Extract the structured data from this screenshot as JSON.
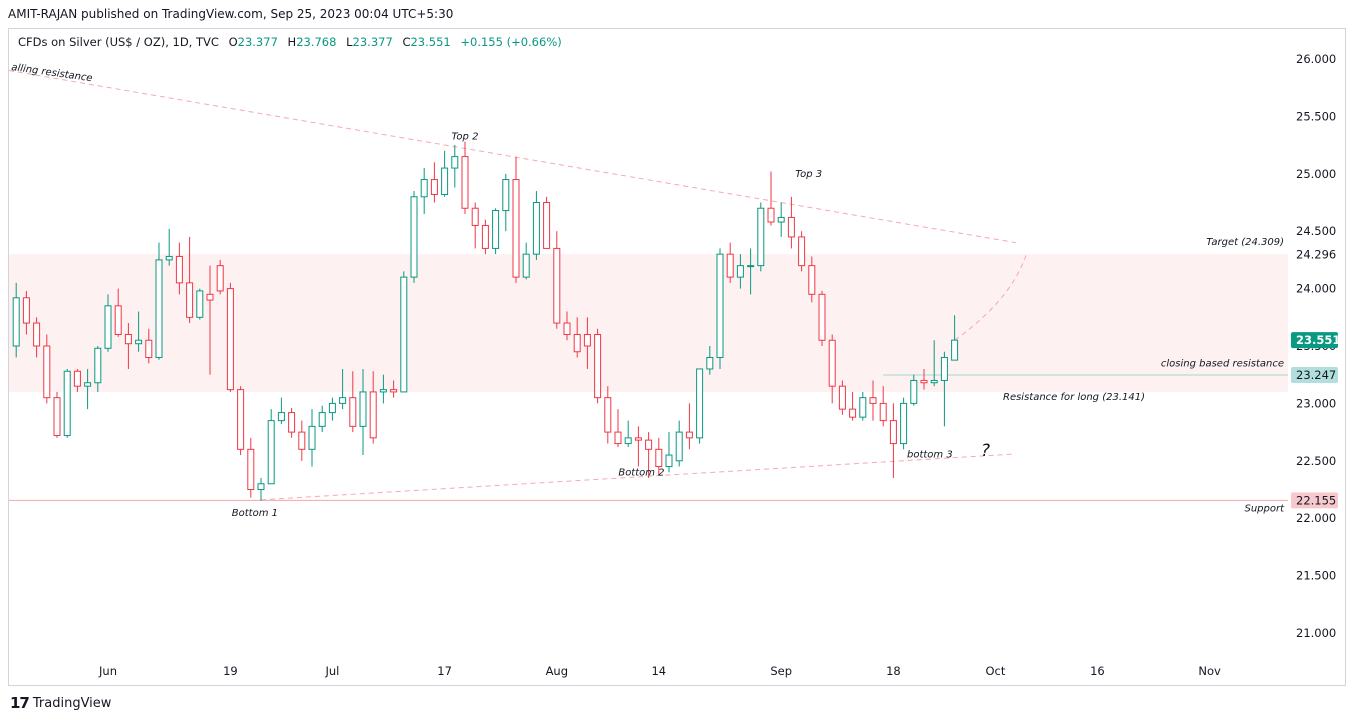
{
  "header": {
    "publisher_line": "AMIT-RAJAN published on TradingView.com, Sep 25, 2023 00:04 UTC+5:30"
  },
  "legend": {
    "symbol": "CFDs on Silver (US$ / OZ), 1D, TVC",
    "open_label": "O",
    "open": "23.377",
    "high_label": "H",
    "high": "23.768",
    "low_label": "L",
    "low": "23.377",
    "close_label": "C",
    "close": "23.551",
    "change": "+0.155 (+0.66%)"
  },
  "footer": {
    "brand": "TradingView",
    "logo_glyph": "17"
  },
  "chart_data": {
    "type": "candlestick",
    "title": "CFDs on Silver (US$ / OZ), 1D, TVC",
    "y_axis": {
      "min": 20.9,
      "max": 26.2,
      "ticks": [
        "26.000",
        "25.500",
        "25.000",
        "24.500",
        "24.000",
        "23.500",
        "23.000",
        "22.500",
        "22.000",
        "21.500",
        "21.000"
      ]
    },
    "x_axis": {
      "ticks": [
        {
          "label": "Jun",
          "day": 0
        },
        {
          "label": "19",
          "day": 12
        },
        {
          "label": "Jul",
          "day": 22
        },
        {
          "label": "17",
          "day": 33
        },
        {
          "label": "Aug",
          "day": 44
        },
        {
          "label": "14",
          "day": 54
        },
        {
          "label": "Sep",
          "day": 66
        },
        {
          "label": "18",
          "day": 77
        },
        {
          "label": "Oct",
          "day": 87
        },
        {
          "label": "16",
          "day": 97
        },
        {
          "label": "Nov",
          "day": 108
        }
      ]
    },
    "price_labels": [
      {
        "text": "24.296",
        "value": 24.296,
        "style": "plain"
      },
      {
        "text": "23.551",
        "value": 23.551,
        "style": "last",
        "color": "#089981"
      },
      {
        "text": "23.247",
        "value": 23.247,
        "style": "level",
        "color": "#b2dfdb"
      },
      {
        "text": "22.155",
        "value": 22.155,
        "style": "support",
        "color": "#f7c9cd"
      }
    ],
    "zone": {
      "from": 23.1,
      "to": 24.3
    },
    "annotations": [
      {
        "text": "alling resistance",
        "kind": "trendline-label"
      },
      {
        "text": "Top 2",
        "value": 25.3
      },
      {
        "text": "Top 3",
        "value": 24.97
      },
      {
        "text": "Target (24.309)",
        "value": 24.38
      },
      {
        "text": "closing based resistance",
        "value": 23.32
      },
      {
        "text": "Resistance for long (23.141)",
        "value": 23.03
      },
      {
        "text": "bottom 3",
        "value": 22.53
      },
      {
        "text": "?",
        "value": 22.54
      },
      {
        "text": "Bottom 1",
        "value": 22.02
      },
      {
        "text": "Bottom 2",
        "value": 22.37
      },
      {
        "text": "Support",
        "value": 22.06
      }
    ],
    "candles": [
      {
        "day": -9,
        "o": 23.5,
        "h": 24.05,
        "l": 23.4,
        "c": 23.92
      },
      {
        "day": -8,
        "o": 23.92,
        "h": 23.98,
        "l": 23.6,
        "c": 23.7
      },
      {
        "day": -7,
        "o": 23.7,
        "h": 23.75,
        "l": 23.4,
        "c": 23.5
      },
      {
        "day": -6,
        "o": 23.5,
        "h": 23.6,
        "l": 23.0,
        "c": 23.05
      },
      {
        "day": -5,
        "o": 23.05,
        "h": 23.1,
        "l": 22.7,
        "c": 22.72
      },
      {
        "day": -4,
        "o": 22.72,
        "h": 23.3,
        "l": 22.7,
        "c": 23.28
      },
      {
        "day": -3,
        "o": 23.28,
        "h": 23.3,
        "l": 23.1,
        "c": 23.15
      },
      {
        "day": -2,
        "o": 23.15,
        "h": 23.3,
        "l": 22.95,
        "c": 23.18
      },
      {
        "day": -1,
        "o": 23.18,
        "h": 23.5,
        "l": 23.1,
        "c": 23.48
      },
      {
        "day": 0,
        "o": 23.48,
        "h": 23.95,
        "l": 23.45,
        "c": 23.85
      },
      {
        "day": 1,
        "o": 23.85,
        "h": 24.0,
        "l": 23.58,
        "c": 23.6
      },
      {
        "day": 2,
        "o": 23.6,
        "h": 23.7,
        "l": 23.3,
        "c": 23.52
      },
      {
        "day": 3,
        "o": 23.52,
        "h": 23.8,
        "l": 23.45,
        "c": 23.55
      },
      {
        "day": 4,
        "o": 23.55,
        "h": 23.65,
        "l": 23.35,
        "c": 23.4
      },
      {
        "day": 5,
        "o": 23.4,
        "h": 24.4,
        "l": 23.38,
        "c": 24.25
      },
      {
        "day": 6,
        "o": 24.25,
        "h": 24.52,
        "l": 24.2,
        "c": 24.28
      },
      {
        "day": 7,
        "o": 24.28,
        "h": 24.4,
        "l": 23.95,
        "c": 24.05
      },
      {
        "day": 8,
        "o": 24.05,
        "h": 24.45,
        "l": 23.7,
        "c": 23.75
      },
      {
        "day": 9,
        "o": 23.75,
        "h": 24.0,
        "l": 23.73,
        "c": 23.98
      },
      {
        "day": 10,
        "o": 23.95,
        "h": 24.2,
        "l": 23.25,
        "c": 23.9
      },
      {
        "day": 11,
        "o": 24.2,
        "h": 24.25,
        "l": 23.95,
        "c": 23.98
      },
      {
        "day": 12,
        "o": 24.0,
        "h": 24.05,
        "l": 23.1,
        "c": 23.12
      },
      {
        "day": 13,
        "o": 23.12,
        "h": 23.15,
        "l": 22.55,
        "c": 22.6
      },
      {
        "day": 14,
        "o": 22.6,
        "h": 22.7,
        "l": 22.18,
        "c": 22.25
      },
      {
        "day": 15,
        "o": 22.25,
        "h": 22.35,
        "l": 22.15,
        "c": 22.3
      },
      {
        "day": 16,
        "o": 22.3,
        "h": 22.95,
        "l": 22.3,
        "c": 22.85
      },
      {
        "day": 17,
        "o": 22.85,
        "h": 23.05,
        "l": 22.82,
        "c": 22.92
      },
      {
        "day": 18,
        "o": 22.92,
        "h": 22.96,
        "l": 22.7,
        "c": 22.75
      },
      {
        "day": 19,
        "o": 22.75,
        "h": 22.85,
        "l": 22.5,
        "c": 22.6
      },
      {
        "day": 20,
        "o": 22.6,
        "h": 22.95,
        "l": 22.45,
        "c": 22.8
      },
      {
        "day": 21,
        "o": 22.8,
        "h": 22.98,
        "l": 22.75,
        "c": 22.92
      },
      {
        "day": 22,
        "o": 22.92,
        "h": 23.05,
        "l": 22.85,
        "c": 23.0
      },
      {
        "day": 23,
        "o": 23.0,
        "h": 23.3,
        "l": 22.95,
        "c": 23.05
      },
      {
        "day": 24,
        "o": 23.05,
        "h": 23.28,
        "l": 22.75,
        "c": 22.8
      },
      {
        "day": 25,
        "o": 22.8,
        "h": 23.3,
        "l": 22.55,
        "c": 23.1
      },
      {
        "day": 26,
        "o": 23.1,
        "h": 23.28,
        "l": 22.65,
        "c": 22.7
      },
      {
        "day": 27,
        "o": 23.1,
        "h": 23.25,
        "l": 23.0,
        "c": 23.12
      },
      {
        "day": 28,
        "o": 23.12,
        "h": 23.2,
        "l": 23.05,
        "c": 23.1
      },
      {
        "day": 29,
        "o": 23.1,
        "h": 24.15,
        "l": 23.1,
        "c": 24.1
      },
      {
        "day": 30,
        "o": 24.1,
        "h": 24.85,
        "l": 24.05,
        "c": 24.8
      },
      {
        "day": 31,
        "o": 24.8,
        "h": 25.05,
        "l": 24.65,
        "c": 24.95
      },
      {
        "day": 32,
        "o": 24.95,
        "h": 25.1,
        "l": 24.75,
        "c": 24.82
      },
      {
        "day": 33,
        "o": 24.82,
        "h": 25.2,
        "l": 24.8,
        "c": 25.05
      },
      {
        "day": 34,
        "o": 25.05,
        "h": 25.25,
        "l": 24.88,
        "c": 25.15
      },
      {
        "day": 35,
        "o": 25.15,
        "h": 25.28,
        "l": 24.65,
        "c": 24.7
      },
      {
        "day": 36,
        "o": 24.7,
        "h": 24.75,
        "l": 24.35,
        "c": 24.55
      },
      {
        "day": 37,
        "o": 24.55,
        "h": 24.6,
        "l": 24.3,
        "c": 24.35
      },
      {
        "day": 38,
        "o": 24.35,
        "h": 24.7,
        "l": 24.3,
        "c": 24.68
      },
      {
        "day": 39,
        "o": 24.68,
        "h": 25.0,
        "l": 24.5,
        "c": 24.95
      },
      {
        "day": 40,
        "o": 24.95,
        "h": 25.15,
        "l": 24.05,
        "c": 24.1
      },
      {
        "day": 41,
        "o": 24.1,
        "h": 24.4,
        "l": 24.08,
        "c": 24.3
      },
      {
        "day": 42,
        "o": 24.3,
        "h": 24.85,
        "l": 24.25,
        "c": 24.75
      },
      {
        "day": 43,
        "o": 24.75,
        "h": 24.8,
        "l": 24.35,
        "c": 24.35
      },
      {
        "day": 44,
        "o": 24.35,
        "h": 24.5,
        "l": 23.65,
        "c": 23.7
      },
      {
        "day": 45,
        "o": 23.7,
        "h": 23.8,
        "l": 23.55,
        "c": 23.6
      },
      {
        "day": 46,
        "o": 23.6,
        "h": 23.75,
        "l": 23.4,
        "c": 23.45
      },
      {
        "day": 47,
        "o": 23.6,
        "h": 23.75,
        "l": 23.3,
        "c": 23.5
      },
      {
        "day": 48,
        "o": 23.6,
        "h": 23.65,
        "l": 23.0,
        "c": 23.05
      },
      {
        "day": 49,
        "o": 23.05,
        "h": 23.15,
        "l": 22.65,
        "c": 22.75
      },
      {
        "day": 50,
        "o": 22.75,
        "h": 22.95,
        "l": 22.62,
        "c": 22.65
      },
      {
        "day": 51,
        "o": 22.65,
        "h": 22.85,
        "l": 22.62,
        "c": 22.7
      },
      {
        "day": 52,
        "o": 22.7,
        "h": 22.8,
        "l": 22.45,
        "c": 22.68
      },
      {
        "day": 53,
        "o": 22.68,
        "h": 22.75,
        "l": 22.35,
        "c": 22.6
      },
      {
        "day": 54,
        "o": 22.6,
        "h": 22.7,
        "l": 22.38,
        "c": 22.45
      },
      {
        "day": 55,
        "o": 22.45,
        "h": 22.75,
        "l": 22.4,
        "c": 22.55
      },
      {
        "day": 56,
        "o": 22.5,
        "h": 22.85,
        "l": 22.45,
        "c": 22.75
      },
      {
        "day": 57,
        "o": 22.75,
        "h": 23.0,
        "l": 22.6,
        "c": 22.7
      },
      {
        "day": 58,
        "o": 22.7,
        "h": 23.3,
        "l": 22.65,
        "c": 23.3
      },
      {
        "day": 59,
        "o": 23.3,
        "h": 23.5,
        "l": 23.25,
        "c": 23.4
      },
      {
        "day": 60,
        "o": 23.4,
        "h": 24.35,
        "l": 23.3,
        "c": 24.3
      },
      {
        "day": 61,
        "o": 24.3,
        "h": 24.4,
        "l": 24.05,
        "c": 24.1
      },
      {
        "day": 62,
        "o": 24.1,
        "h": 24.3,
        "l": 24.0,
        "c": 24.2
      },
      {
        "day": 63,
        "o": 24.2,
        "h": 24.35,
        "l": 23.95,
        "c": 24.2
      },
      {
        "day": 64,
        "o": 24.2,
        "h": 24.75,
        "l": 24.15,
        "c": 24.7
      },
      {
        "day": 65,
        "o": 24.7,
        "h": 25.02,
        "l": 24.55,
        "c": 24.58
      },
      {
        "day": 66,
        "o": 24.58,
        "h": 24.75,
        "l": 24.45,
        "c": 24.62
      },
      {
        "day": 67,
        "o": 24.62,
        "h": 24.8,
        "l": 24.35,
        "c": 24.45
      },
      {
        "day": 68,
        "o": 24.45,
        "h": 24.5,
        "l": 24.15,
        "c": 24.2
      },
      {
        "day": 69,
        "o": 24.2,
        "h": 24.28,
        "l": 23.88,
        "c": 23.95
      },
      {
        "day": 70,
        "o": 23.95,
        "h": 23.98,
        "l": 23.5,
        "c": 23.55
      },
      {
        "day": 71,
        "o": 23.55,
        "h": 23.6,
        "l": 23.0,
        "c": 23.15
      },
      {
        "day": 72,
        "o": 23.15,
        "h": 23.2,
        "l": 22.9,
        "c": 22.95
      },
      {
        "day": 73,
        "o": 22.95,
        "h": 23.1,
        "l": 22.85,
        "c": 22.88
      },
      {
        "day": 74,
        "o": 22.88,
        "h": 23.1,
        "l": 22.85,
        "c": 23.05
      },
      {
        "day": 75,
        "o": 23.05,
        "h": 23.2,
        "l": 22.85,
        "c": 23.0
      },
      {
        "day": 76,
        "o": 23.0,
        "h": 23.15,
        "l": 22.8,
        "c": 22.85
      },
      {
        "day": 77,
        "o": 22.85,
        "h": 23.0,
        "l": 22.35,
        "c": 22.65
      },
      {
        "day": 78,
        "o": 22.65,
        "h": 23.05,
        "l": 22.6,
        "c": 23.0
      },
      {
        "day": 79,
        "o": 23.0,
        "h": 23.25,
        "l": 22.98,
        "c": 23.2
      },
      {
        "day": 80,
        "o": 23.2,
        "h": 23.3,
        "l": 23.12,
        "c": 23.18
      },
      {
        "day": 81,
        "o": 23.18,
        "h": 23.55,
        "l": 23.15,
        "c": 23.2
      },
      {
        "day": 82,
        "o": 23.2,
        "h": 23.45,
        "l": 22.8,
        "c": 23.4
      },
      {
        "day": 83,
        "o": 23.377,
        "h": 23.768,
        "l": 23.377,
        "c": 23.551
      }
    ]
  }
}
